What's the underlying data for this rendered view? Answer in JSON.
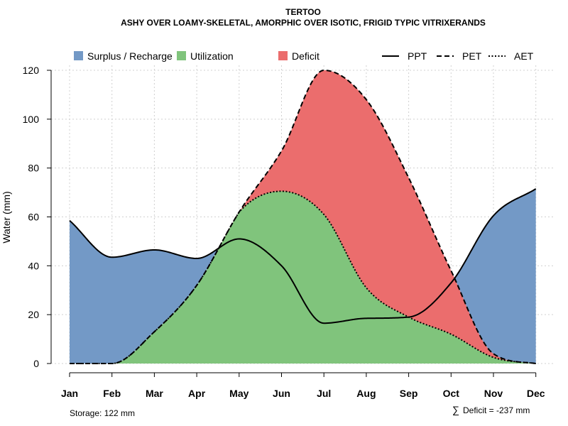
{
  "chart_data": {
    "type": "area",
    "title": "TERTOO",
    "subtitle": "ASHY OVER LOAMY-SKELETAL, AMORPHIC OVER ISOTIC, FRIGID TYPIC VITRIXERANDS",
    "ylabel": "Water (mm)",
    "xlabel": "",
    "ylim": [
      0,
      120
    ],
    "yticks": [
      0,
      20,
      40,
      60,
      80,
      100,
      120
    ],
    "categories": [
      "Jan",
      "Feb",
      "Mar",
      "Apr",
      "May",
      "Jun",
      "Jul",
      "Aug",
      "Sep",
      "Oct",
      "Nov",
      "Dec"
    ],
    "grid": true,
    "legend_position": "top",
    "series": [
      {
        "name": "PPT",
        "style": "solid",
        "values": [
          58.5,
          43.5,
          46.5,
          43.0,
          51.0,
          40.0,
          16.5,
          18.5,
          19.0,
          33.0,
          60.5,
          71.5
        ]
      },
      {
        "name": "PET",
        "style": "dashed",
        "values": [
          0,
          0,
          13.0,
          32.0,
          62.0,
          87.0,
          120.0,
          108.0,
          76.0,
          38.0,
          4.0,
          0
        ]
      },
      {
        "name": "AET",
        "style": "dotted",
        "values": [
          0,
          0,
          13.0,
          32.0,
          62.0,
          70.5,
          61.0,
          31.0,
          19.0,
          12.0,
          2.5,
          0
        ]
      }
    ],
    "legend": [
      {
        "key": "surplus",
        "label": "Surplus / Recharge",
        "kind": "fill",
        "color": "#7399c6"
      },
      {
        "key": "utilization",
        "label": "Utilization",
        "kind": "fill",
        "color": "#80c47c"
      },
      {
        "key": "deficit",
        "label": "Deficit",
        "kind": "fill",
        "color": "#eb6d6d"
      },
      {
        "key": "ppt",
        "label": "PPT",
        "kind": "line",
        "dash": "solid"
      },
      {
        "key": "pet",
        "label": "PET",
        "kind": "line",
        "dash": "dashed"
      },
      {
        "key": "aet",
        "label": "AET",
        "kind": "line",
        "dash": "dotted"
      }
    ],
    "colors": {
      "surplus": "#7399c6",
      "utilization": "#80c47c",
      "deficit": "#eb6d6d"
    },
    "annotations": {
      "storage": "Storage: 122 mm",
      "deficit_symbol": "∑",
      "deficit": "Deficit = -237 mm"
    }
  }
}
